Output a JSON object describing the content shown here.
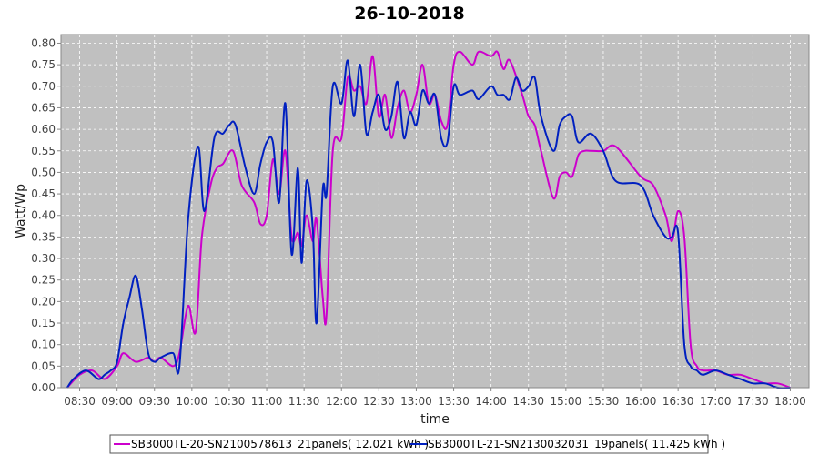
{
  "chart_data": {
    "type": "line",
    "title": "26-10-2018",
    "xlabel": "time",
    "ylabel": "Watt/Wp",
    "xlim": [
      "08:15",
      "18:15"
    ],
    "ylim": [
      0,
      0.82
    ],
    "x_tick_labels": [
      "08:30",
      "09:00",
      "09:30",
      "10:00",
      "10:30",
      "11:00",
      "11:30",
      "12:00",
      "12:30",
      "13:00",
      "13:30",
      "14:00",
      "14:30",
      "15:00",
      "15:30",
      "16:00",
      "16:30",
      "17:00",
      "17:30",
      "18:00"
    ],
    "y_tick_labels": [
      "0.00",
      "0.05",
      "0.10",
      "0.15",
      "0.20",
      "0.25",
      "0.30",
      "0.35",
      "0.40",
      "0.45",
      "0.50",
      "0.55",
      "0.60",
      "0.65",
      "0.70",
      "0.75",
      "0.80"
    ],
    "grid": true,
    "legend_position": "bottom",
    "background_color": "#c0c0c0",
    "series": [
      {
        "name": "SB3000TL-20-SN2100578613_21panels( 12.021 kWh )",
        "color": "#cc00cc",
        "x": [
          "08:20",
          "08:30",
          "08:40",
          "08:50",
          "09:00",
          "09:05",
          "09:15",
          "09:25",
          "09:30",
          "09:35",
          "09:45",
          "09:50",
          "09:57",
          "10:03",
          "10:08",
          "10:15",
          "10:20",
          "10:25",
          "10:33",
          "10:40",
          "10:50",
          "10:55",
          "11:00",
          "11:05",
          "11:10",
          "11:15",
          "11:20",
          "11:25",
          "11:28",
          "11:32",
          "11:37",
          "11:40",
          "11:45",
          "11:48",
          "11:53",
          "12:00",
          "12:05",
          "12:10",
          "12:15",
          "12:20",
          "12:25",
          "12:30",
          "12:35",
          "12:40",
          "12:45",
          "12:50",
          "12:55",
          "13:00",
          "13:05",
          "13:10",
          "13:15",
          "13:20",
          "13:25",
          "13:30",
          "13:35",
          "13:45",
          "13:50",
          "14:00",
          "14:05",
          "14:10",
          "14:15",
          "14:25",
          "14:30",
          "14:35",
          "14:40",
          "14:50",
          "14:55",
          "15:00",
          "15:05",
          "15:10",
          "15:15",
          "15:20",
          "15:30",
          "15:40",
          "16:00",
          "16:10",
          "16:20",
          "16:25",
          "16:30",
          "16:35",
          "16:40",
          "16:45",
          "16:50",
          "17:00",
          "17:10",
          "17:20",
          "17:30",
          "17:40",
          "17:50",
          "18:00"
        ],
        "y": [
          0.0,
          0.03,
          0.04,
          0.02,
          0.05,
          0.08,
          0.06,
          0.07,
          0.06,
          0.07,
          0.05,
          0.08,
          0.19,
          0.13,
          0.35,
          0.47,
          0.51,
          0.52,
          0.55,
          0.47,
          0.43,
          0.38,
          0.4,
          0.53,
          0.45,
          0.55,
          0.35,
          0.36,
          0.33,
          0.4,
          0.34,
          0.39,
          0.21,
          0.17,
          0.55,
          0.58,
          0.72,
          0.69,
          0.7,
          0.66,
          0.77,
          0.63,
          0.68,
          0.58,
          0.65,
          0.69,
          0.64,
          0.68,
          0.75,
          0.66,
          0.68,
          0.62,
          0.61,
          0.75,
          0.78,
          0.75,
          0.78,
          0.77,
          0.78,
          0.74,
          0.76,
          0.68,
          0.63,
          0.61,
          0.55,
          0.44,
          0.49,
          0.5,
          0.49,
          0.54,
          0.55,
          0.55,
          0.55,
          0.56,
          0.49,
          0.47,
          0.4,
          0.34,
          0.41,
          0.35,
          0.1,
          0.05,
          0.04,
          0.04,
          0.03,
          0.03,
          0.02,
          0.01,
          0.01,
          0.0
        ]
      },
      {
        "name": "SB3000TL-21-SN2130032031_19panels( 11.425 kWh )",
        "color": "#0020c0",
        "x": [
          "08:20",
          "08:25",
          "08:35",
          "08:45",
          "08:50",
          "08:55",
          "09:00",
          "09:05",
          "09:10",
          "09:15",
          "09:20",
          "09:25",
          "09:30",
          "09:35",
          "09:45",
          "09:50",
          "09:57",
          "10:05",
          "10:10",
          "10:18",
          "10:25",
          "10:30",
          "10:35",
          "10:43",
          "10:50",
          "10:55",
          "11:00",
          "11:05",
          "11:10",
          "11:15",
          "11:20",
          "11:25",
          "11:28",
          "11:32",
          "11:37",
          "11:40",
          "11:45",
          "11:48",
          "11:53",
          "12:00",
          "12:05",
          "12:10",
          "12:15",
          "12:20",
          "12:25",
          "12:30",
          "12:35",
          "12:40",
          "12:45",
          "12:50",
          "12:55",
          "13:00",
          "13:05",
          "13:10",
          "13:15",
          "13:20",
          "13:25",
          "13:30",
          "13:35",
          "13:45",
          "13:50",
          "14:00",
          "14:05",
          "14:10",
          "14:15",
          "14:20",
          "14:25",
          "14:30",
          "14:35",
          "14:40",
          "14:50",
          "14:55",
          "15:00",
          "15:05",
          "15:10",
          "15:20",
          "15:30",
          "15:40",
          "16:00",
          "16:10",
          "16:20",
          "16:25",
          "16:30",
          "16:35",
          "16:40",
          "16:45",
          "16:50",
          "17:00",
          "17:10",
          "17:20",
          "17:30",
          "17:40",
          "17:50",
          "18:00"
        ],
        "y": [
          0.0,
          0.02,
          0.04,
          0.02,
          0.03,
          0.04,
          0.06,
          0.15,
          0.21,
          0.26,
          0.18,
          0.08,
          0.06,
          0.07,
          0.08,
          0.05,
          0.39,
          0.56,
          0.41,
          0.58,
          0.59,
          0.61,
          0.61,
          0.51,
          0.45,
          0.52,
          0.57,
          0.57,
          0.43,
          0.66,
          0.31,
          0.51,
          0.29,
          0.48,
          0.37,
          0.15,
          0.46,
          0.45,
          0.7,
          0.66,
          0.76,
          0.63,
          0.75,
          0.59,
          0.64,
          0.68,
          0.6,
          0.63,
          0.71,
          0.58,
          0.64,
          0.61,
          0.69,
          0.66,
          0.68,
          0.58,
          0.57,
          0.7,
          0.68,
          0.69,
          0.67,
          0.7,
          0.68,
          0.68,
          0.67,
          0.72,
          0.69,
          0.7,
          0.72,
          0.63,
          0.55,
          0.61,
          0.63,
          0.63,
          0.57,
          0.59,
          0.55,
          0.48,
          0.47,
          0.4,
          0.35,
          0.35,
          0.36,
          0.1,
          0.05,
          0.04,
          0.03,
          0.04,
          0.03,
          0.02,
          0.01,
          0.01,
          0.0,
          0.0
        ]
      }
    ]
  }
}
